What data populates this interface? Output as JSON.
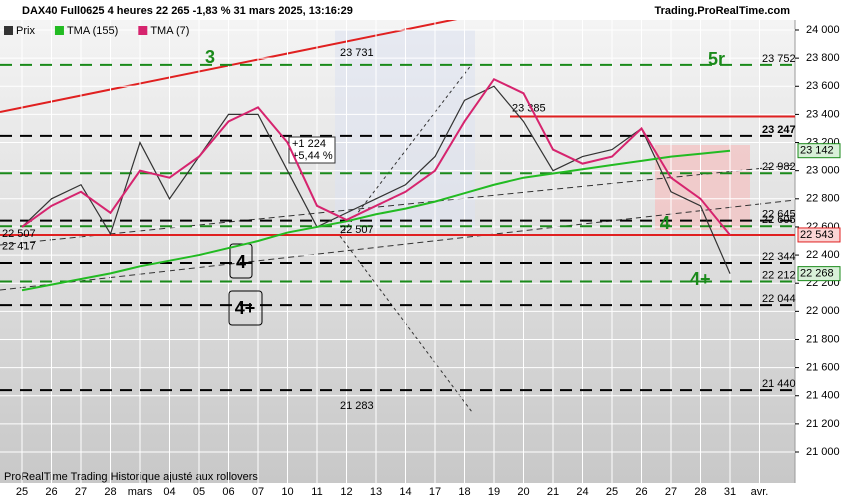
{
  "header": {
    "title": "DAX40 Full0625 4 heures 22 265 -1,83 % 31 mars 2025, 13:16:29",
    "site": "Trading.ProRealTime.com"
  },
  "footer": "ProRealTime Trading  Historique ajusté aux rollovers",
  "chart_data": {
    "type": "line",
    "categories": [
      "25",
      "26",
      "27",
      "28",
      "mars",
      "04",
      "05",
      "06",
      "07",
      "10",
      "11",
      "12",
      "13",
      "14",
      "17",
      "18",
      "19",
      "20",
      "21",
      "24",
      "25",
      "26",
      "27",
      "28",
      "31",
      "avr."
    ],
    "series": [
      {
        "name": "Prix",
        "color": "#333333",
        "values": [
          22600,
          22800,
          22900,
          22550,
          23200,
          22800,
          23100,
          23400,
          23400,
          23000,
          22600,
          22700,
          22800,
          22900,
          23100,
          23500,
          23600,
          23350,
          23000,
          23100,
          23150,
          23300,
          22850,
          22750,
          22268,
          null
        ]
      },
      {
        "name": "TMA (155)",
        "color": "#22bb22",
        "values": [
          22150,
          22190,
          22230,
          22270,
          22320,
          22360,
          22400,
          22450,
          22500,
          22560,
          22600,
          22640,
          22690,
          22730,
          22780,
          22840,
          22900,
          22950,
          22980,
          23010,
          23040,
          23070,
          23100,
          23120,
          23142,
          null
        ]
      },
      {
        "name": "TMA (7)",
        "color": "#d6246e",
        "values": [
          22600,
          22750,
          22850,
          22700,
          23000,
          22950,
          23100,
          23350,
          23450,
          23200,
          22750,
          22650,
          22750,
          22850,
          23000,
          23350,
          23650,
          23550,
          23150,
          23050,
          23100,
          23300,
          22950,
          22800,
          22543,
          null
        ]
      }
    ],
    "ylim": [
      20800,
      24100
    ],
    "yticks": [
      {
        "value": 21000,
        "label": "21 000"
      },
      {
        "value": 21200,
        "label": "21 200"
      },
      {
        "value": 21400,
        "label": "21 400"
      },
      {
        "value": 21600,
        "label": "21 600"
      },
      {
        "value": 21800,
        "label": "21 800"
      },
      {
        "value": 22000,
        "label": "22 000"
      },
      {
        "value": 22200,
        "label": "22 200"
      },
      {
        "value": 22400,
        "label": "22 400"
      },
      {
        "value": 22600,
        "label": "22 600"
      },
      {
        "value": 22800,
        "label": "22 800"
      },
      {
        "value": 23000,
        "label": "23 000"
      },
      {
        "value": 23200,
        "label": "23 200"
      },
      {
        "value": 23400,
        "label": "23 400"
      },
      {
        "value": 23600,
        "label": "23 600"
      },
      {
        "value": 23800,
        "label": "23 800"
      },
      {
        "value": 24000,
        "label": "24 000"
      }
    ],
    "levels": [
      {
        "value": 23752,
        "label": "23 752",
        "color": "#1a8a1a"
      },
      {
        "value": 23247,
        "label": "23 247",
        "color": "#000000"
      },
      {
        "value": 22982,
        "label": "22 982",
        "color": "#1a8a1a"
      },
      {
        "value": 22645,
        "label": "22 645",
        "color": "#000000"
      },
      {
        "value": 22605,
        "label": "22 605",
        "color": "#1a8a1a"
      },
      {
        "value": 22344,
        "label": "22 344",
        "color": "#000000"
      },
      {
        "value": 22212,
        "label": "22 212",
        "color": "#1a8a1a"
      },
      {
        "value": 22044,
        "label": "22 044",
        "color": "#000000"
      },
      {
        "value": 21440,
        "label": "21 440",
        "color": "#000000"
      },
      {
        "value": 22543,
        "label": "22 543",
        "color": "#e02020"
      },
      {
        "value": 23385,
        "label": "23 385",
        "color": "#e02020"
      }
    ],
    "tags": [
      {
        "value": 22507,
        "label": "22 507",
        "color": "#e02020"
      },
      {
        "value": 22417,
        "label": "22 417",
        "color": "#1a8a1a"
      },
      {
        "value": 23142,
        "label": "23 142",
        "color": "#1a8a1a"
      },
      {
        "value": 22268,
        "label": "22 268",
        "color": "#1a8a1a"
      }
    ],
    "annotations": [
      "3",
      "5r",
      "4",
      "4+",
      "4",
      "4+",
      "23 731",
      "22 507",
      "21 283",
      "+1 224",
      "+5,44 %"
    ]
  }
}
